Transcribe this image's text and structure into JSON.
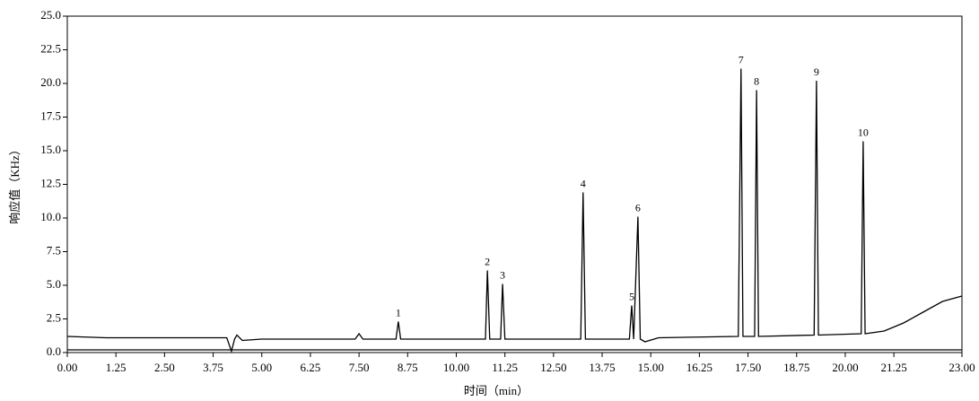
{
  "chart_data": {
    "type": "line",
    "xlabel": "时间（min）",
    "ylabel": "响应值（KHz）",
    "xlim": [
      0,
      23
    ],
    "ylim": [
      0,
      25
    ],
    "xticks": [
      {
        "value": 0,
        "label": "0.00"
      },
      {
        "value": 1.25,
        "label": "1.25"
      },
      {
        "value": 2.5,
        "label": "2.50"
      },
      {
        "value": 3.75,
        "label": "3.75"
      },
      {
        "value": 5,
        "label": "5.00"
      },
      {
        "value": 6.25,
        "label": "6.25"
      },
      {
        "value": 7.5,
        "label": "7.50"
      },
      {
        "value": 8.75,
        "label": "8.75"
      },
      {
        "value": 10,
        "label": "10.00"
      },
      {
        "value": 11.25,
        "label": "11.25"
      },
      {
        "value": 12.5,
        "label": "12.50"
      },
      {
        "value": 13.75,
        "label": "13.75"
      },
      {
        "value": 15,
        "label": "15.00"
      },
      {
        "value": 16.25,
        "label": "16.25"
      },
      {
        "value": 17.5,
        "label": "17.50"
      },
      {
        "value": 18.75,
        "label": "18.75"
      },
      {
        "value": 20,
        "label": "20.00"
      },
      {
        "value": 21.25,
        "label": "21.25"
      },
      {
        "value": 23,
        "label": "23.00"
      }
    ],
    "yticks": [
      {
        "value": 0,
        "label": "0.0"
      },
      {
        "value": 2.5,
        "label": "2.5"
      },
      {
        "value": 5,
        "label": "5.0"
      },
      {
        "value": 7.5,
        "label": "7.5"
      },
      {
        "value": 10,
        "label": "10.0"
      },
      {
        "value": 12.5,
        "label": "12.5"
      },
      {
        "value": 15,
        "label": "15.0"
      },
      {
        "value": 17.5,
        "label": "17.5"
      },
      {
        "value": 20,
        "label": "20.0"
      },
      {
        "value": 22.5,
        "label": "22.5"
      },
      {
        "value": 25,
        "label": "25.0"
      }
    ],
    "series": [
      {
        "color": "#000000",
        "x": [
          0,
          1,
          2,
          3.7,
          4.1,
          4.22,
          4.3,
          4.36,
          4.5,
          5,
          7.4,
          7.5,
          7.6,
          8.45,
          8.51,
          8.57,
          10,
          10.75,
          10.8,
          10.86,
          11.14,
          11.19,
          11.25,
          13,
          13.2,
          13.26,
          13.32,
          14.45,
          14.51,
          14.56,
          14.67,
          14.73,
          14.85,
          15.2,
          17.25,
          17.32,
          17.37,
          17.67,
          17.72,
          17.77,
          19.2,
          19.26,
          19.31,
          20.41,
          20.46,
          20.51,
          21,
          21.5,
          22,
          22.5,
          23
        ],
        "values": [
          1.2,
          1.1,
          1.1,
          1.1,
          1.1,
          0.1,
          1.0,
          1.3,
          0.9,
          1.0,
          1.0,
          1.4,
          1.0,
          1.0,
          2.3,
          1.0,
          1.0,
          1.0,
          6.1,
          1.0,
          1.0,
          5.1,
          1.0,
          1.0,
          1.0,
          11.9,
          1.0,
          1.0,
          3.5,
          1.0,
          10.1,
          1.0,
          0.8,
          1.1,
          1.2,
          21.1,
          1.2,
          1.2,
          19.5,
          1.2,
          1.3,
          20.2,
          1.3,
          1.4,
          15.7,
          1.4,
          1.6,
          2.2,
          3.0,
          3.8,
          4.2
        ]
      },
      {
        "color": "#000000",
        "x": [
          0,
          23
        ],
        "values": [
          0.2,
          0.2
        ]
      }
    ],
    "annotations": [
      {
        "text": "1",
        "x": 8.51,
        "y": 2.3
      },
      {
        "text": "2",
        "x": 10.8,
        "y": 6.1
      },
      {
        "text": "3",
        "x": 11.19,
        "y": 5.1
      },
      {
        "text": "4",
        "x": 13.26,
        "y": 11.9
      },
      {
        "text": "5",
        "x": 14.51,
        "y": 3.5
      },
      {
        "text": "6",
        "x": 14.67,
        "y": 10.1
      },
      {
        "text": "7",
        "x": 17.32,
        "y": 21.1
      },
      {
        "text": "8",
        "x": 17.72,
        "y": 19.5
      },
      {
        "text": "9",
        "x": 19.26,
        "y": 20.2
      },
      {
        "text": "10",
        "x": 20.46,
        "y": 15.7
      }
    ]
  }
}
